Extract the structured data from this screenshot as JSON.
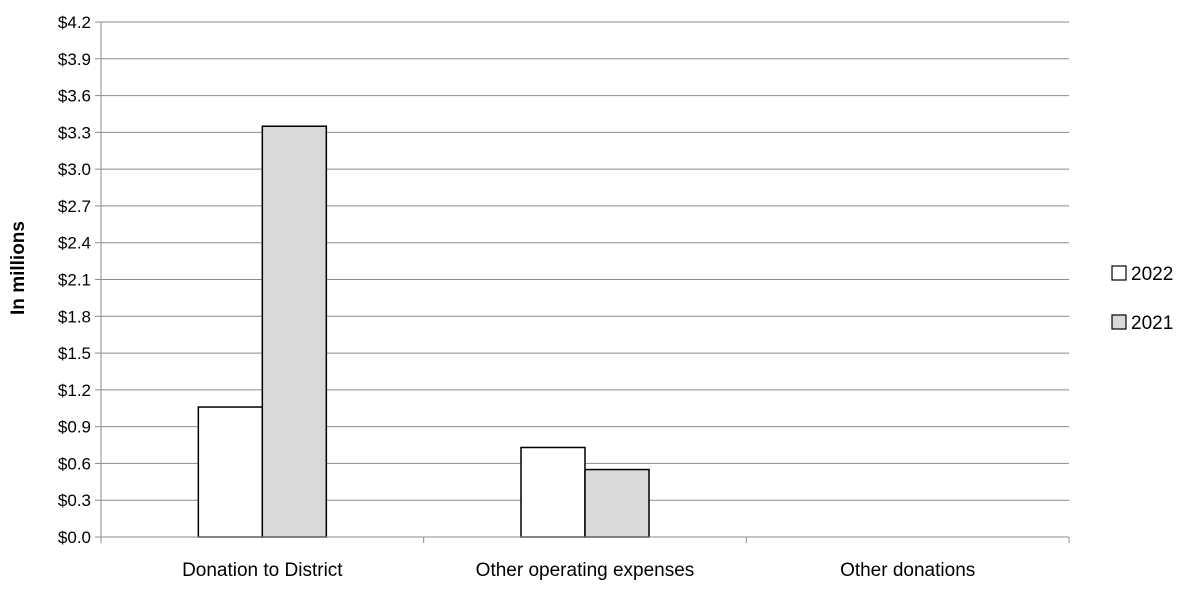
{
  "chart_data": {
    "type": "bar",
    "title": "",
    "xlabel": "",
    "ylabel": "In millions",
    "ylim": [
      0,
      4.2
    ],
    "ytick_step": 0.3,
    "ytick_labels": [
      "$0.0",
      "$0.3",
      "$0.6",
      "$0.9",
      "$1.2",
      "$1.5",
      "$1.8",
      "$2.1",
      "$2.4",
      "$2.7",
      "$3.0",
      "$3.3",
      "$3.6",
      "$3.9",
      "$4.2"
    ],
    "categories": [
      "Donation to District",
      "Other operating expenses",
      "Other donations"
    ],
    "series": [
      {
        "name": "2022",
        "values": [
          1.06,
          0.73,
          0
        ],
        "color": "#ffffff"
      },
      {
        "name": "2021",
        "values": [
          3.35,
          0.55,
          0
        ],
        "color": "#d9d9d9"
      }
    ],
    "grid": true,
    "legend_position": "right"
  }
}
